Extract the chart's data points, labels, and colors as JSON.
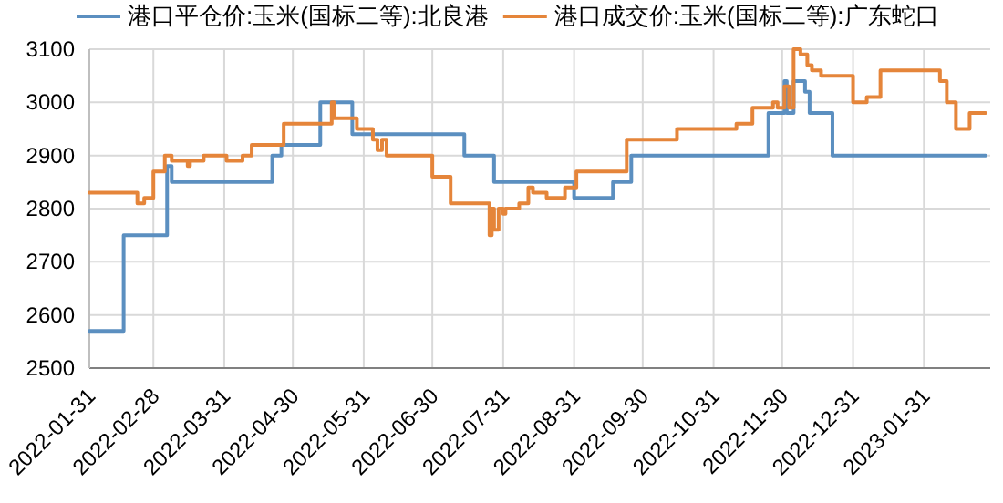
{
  "chart_data": {
    "type": "step",
    "xlim": [
      "2022-01-31",
      "2023-03-01"
    ],
    "xticks": [
      "2022-01-31",
      "2022-02-28",
      "2022-03-31",
      "2022-04-30",
      "2022-05-31",
      "2022-06-30",
      "2022-07-31",
      "2022-08-31",
      "2022-09-30",
      "2022-10-31",
      "2022-11-30",
      "2022-12-31",
      "2023-01-31"
    ],
    "ylim": [
      2500,
      3100
    ],
    "yticks": [
      2500,
      2600,
      2700,
      2800,
      2900,
      3000,
      3100
    ],
    "grid": true,
    "legend": "top",
    "line_style": "solid",
    "marker": "none",
    "series": [
      {
        "name": "港口平仓价:玉米(国标二等):北良港",
        "color": "#5b8fc0",
        "x": [
          "2022-01-31",
          "2022-02-15",
          "2022-03-06",
          "2022-03-08",
          "2022-04-21",
          "2022-04-25",
          "2022-05-12",
          "2022-05-26",
          "2022-07-14",
          "2022-07-27",
          "2022-08-31",
          "2022-09-17",
          "2022-09-25",
          "2022-11-24",
          "2022-12-01",
          "2022-12-02",
          "2022-12-05",
          "2022-12-10",
          "2022-12-12",
          "2022-12-22",
          "2023-02-27"
        ],
        "values": [
          2570,
          2750,
          2880,
          2850,
          2900,
          2920,
          3000,
          2940,
          2900,
          2850,
          2820,
          2850,
          2900,
          2980,
          3040,
          2980,
          3040,
          3020,
          2980,
          2900,
          2900
        ]
      },
      {
        "name": "港口成交价:玉米(国标二等):广东蛇口",
        "color": "#e5853a",
        "x": [
          "2022-01-31",
          "2022-02-21",
          "2022-02-24",
          "2022-02-28",
          "2022-03-05",
          "2022-03-08",
          "2022-03-15",
          "2022-03-16",
          "2022-03-22",
          "2022-04-01",
          "2022-04-08",
          "2022-04-12",
          "2022-04-26",
          "2022-05-17",
          "2022-05-18",
          "2022-05-28",
          "2022-06-04",
          "2022-06-06",
          "2022-06-08",
          "2022-06-10",
          "2022-06-30",
          "2022-07-08",
          "2022-07-25",
          "2022-07-26",
          "2022-07-27",
          "2022-07-29",
          "2022-07-31",
          "2022-08-01",
          "2022-08-07",
          "2022-08-11",
          "2022-08-13",
          "2022-08-19",
          "2022-08-27",
          "2022-09-01",
          "2022-09-23",
          "2022-10-15",
          "2022-11-10",
          "2022-11-17",
          "2022-11-26",
          "2022-11-28",
          "2022-12-01",
          "2022-12-03",
          "2022-12-05",
          "2022-12-08",
          "2022-12-11",
          "2022-12-13",
          "2022-12-17",
          "2022-12-31",
          "2023-01-06",
          "2023-01-12",
          "2023-02-07",
          "2023-02-10",
          "2023-02-14",
          "2023-02-20",
          "2023-02-27"
        ],
        "values": [
          2830,
          2810,
          2820,
          2870,
          2900,
          2890,
          2880,
          2890,
          2900,
          2890,
          2900,
          2920,
          2960,
          3000,
          2970,
          2950,
          2930,
          2910,
          2930,
          2900,
          2860,
          2810,
          2750,
          2800,
          2760,
          2800,
          2790,
          2800,
          2810,
          2840,
          2830,
          2820,
          2840,
          2870,
          2930,
          2950,
          2960,
          2990,
          3000,
          2990,
          3030,
          2990,
          3100,
          3090,
          3070,
          3060,
          3050,
          3000,
          3010,
          3060,
          3040,
          3000,
          2950,
          2980,
          2980
        ]
      }
    ]
  }
}
